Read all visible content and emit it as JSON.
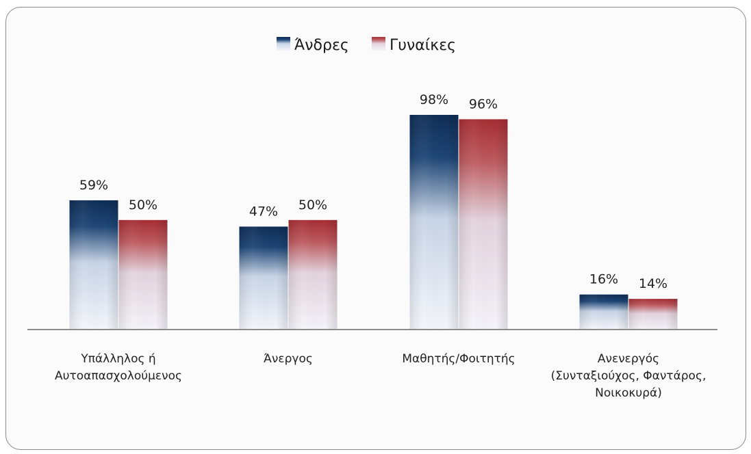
{
  "chart_data": {
    "type": "bar",
    "categories": [
      [
        "Υπάλληλος ή",
        "Αυτοαπασχολούμενος"
      ],
      [
        "Άνεργος"
      ],
      [
        "Μαθητής/Φοιτητής"
      ],
      [
        "Ανενεργός",
        "(Συνταξιούχος, Φαντάρος,",
        "Νοικοκυρά)"
      ]
    ],
    "series": [
      {
        "name": "Άνδρες",
        "values": [
          59,
          47,
          98,
          16
        ],
        "labels": [
          "59%",
          "47%",
          "98%",
          "16%"
        ],
        "color": "#17375e"
      },
      {
        "name": "Γυναίκες",
        "values": [
          50,
          50,
          96,
          14
        ],
        "labels": [
          "50%",
          "50%",
          "96%",
          "14%"
        ],
        "color": "#b03a3e"
      }
    ],
    "ylim": [
      0,
      100
    ],
    "legend_position": "top-center",
    "grid": false,
    "title": "",
    "xlabel": "",
    "ylabel": ""
  }
}
